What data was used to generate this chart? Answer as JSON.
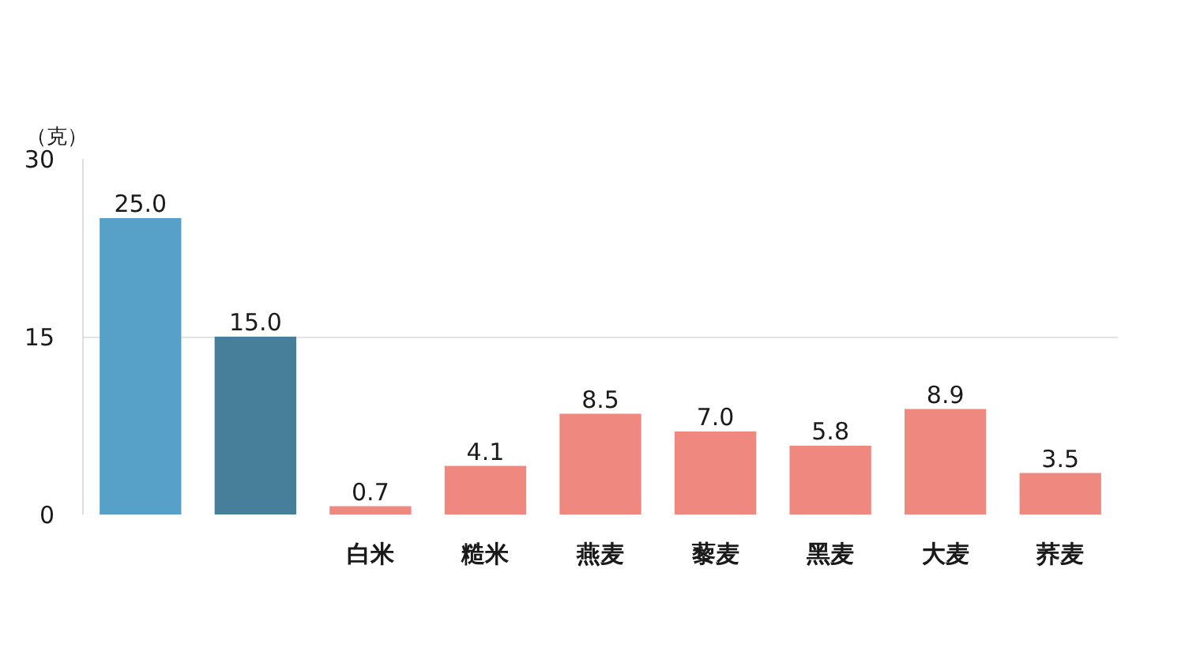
{
  "chart_data": {
    "type": "bar",
    "ylabel": "（克）",
    "categories": [
      null,
      null,
      "白米",
      "糙米",
      "燕麦",
      "藜麦",
      "黑麦",
      "大麦",
      "荞麦"
    ],
    "values": [
      25.0,
      15.0,
      0.7,
      4.1,
      8.5,
      7.0,
      5.8,
      8.9,
      3.5
    ],
    "colors": [
      "#57a1c9",
      "#477f9b",
      "#ef8980",
      "#ef8980",
      "#ef8980",
      "#ef8980",
      "#ef8980",
      "#ef8980",
      "#ef8980"
    ],
    "value_labels": [
      "25.0",
      "15.0",
      "0.7",
      "4.1",
      "8.5",
      "7.0",
      "5.8",
      "8.9",
      "3.5"
    ],
    "ylim": [
      0,
      30
    ],
    "yticks": [
      0,
      15,
      30
    ],
    "grid": "y"
  }
}
